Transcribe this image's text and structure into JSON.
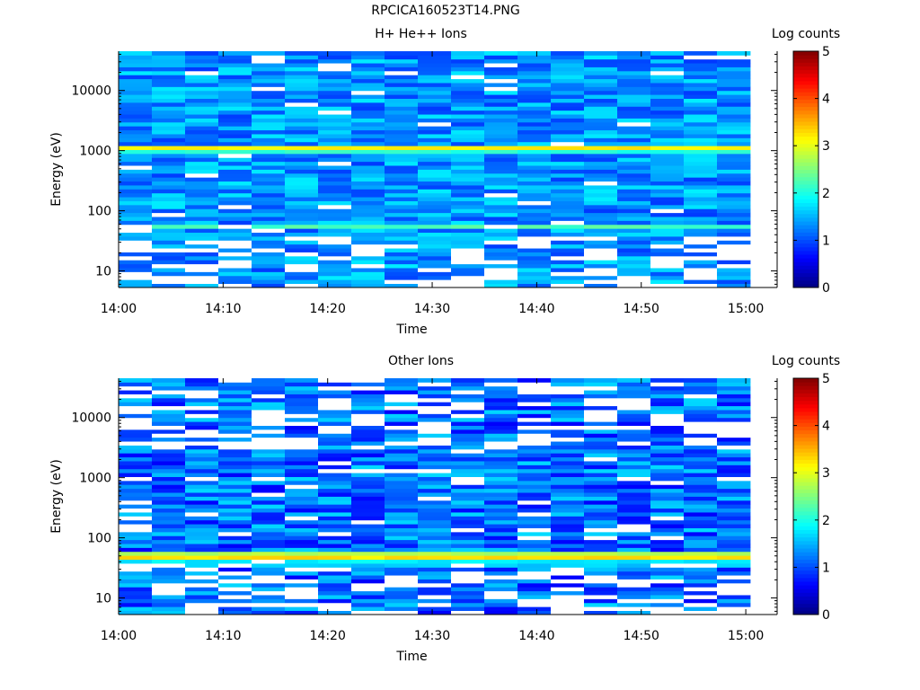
{
  "figure": {
    "title": "RPCICA160523T14.PNG"
  },
  "colors": {
    "white_bins": "#ffffff",
    "axis": "#000000"
  },
  "colormap": "jet",
  "chart_data": [
    {
      "type": "heatmap",
      "title": "H+ He++ Ions",
      "xlabel": "Time",
      "ylabel": "Energy (eV)",
      "x_ticks": [
        "14:00",
        "14:10",
        "14:20",
        "14:30",
        "14:40",
        "14:50",
        "15:00"
      ],
      "x_range": [
        "14:00",
        "15:03"
      ],
      "y_scale": "log",
      "y_ticks": [
        "10",
        "100",
        "1000",
        "10000"
      ],
      "y_range": [
        5.3,
        45000
      ],
      "colorbar_label": "Log counts",
      "colorbar_ticks": [
        "0",
        "1",
        "2",
        "3",
        "4",
        "5"
      ],
      "color_range": [
        0,
        5
      ],
      "time_bins": 19,
      "energy_bins": 60,
      "peaks": [
        {
          "energy_ev": 1080,
          "log_counts": 3.2
        },
        {
          "energy_ev": 55,
          "log_counts": 2.1
        }
      ]
    },
    {
      "type": "heatmap",
      "title": "Other Ions",
      "xlabel": "Time",
      "ylabel": "Energy (eV)",
      "x_ticks": [
        "14:00",
        "14:10",
        "14:20",
        "14:30",
        "14:40",
        "14:50",
        "15:00"
      ],
      "x_range": [
        "14:00",
        "15:03"
      ],
      "y_scale": "log",
      "y_ticks": [
        "10",
        "100",
        "1000",
        "10000"
      ],
      "y_range": [
        5.3,
        45000
      ],
      "colorbar_label": "Log counts",
      "colorbar_ticks": [
        "0",
        "1",
        "2",
        "3",
        "4",
        "5"
      ],
      "color_range": [
        0,
        5
      ],
      "time_bins": 19,
      "energy_bins": 60,
      "peaks": [
        {
          "energy_ev": 50,
          "log_counts": 3.6
        },
        {
          "energy_ev": 38,
          "log_counts": 2.0
        }
      ]
    }
  ]
}
